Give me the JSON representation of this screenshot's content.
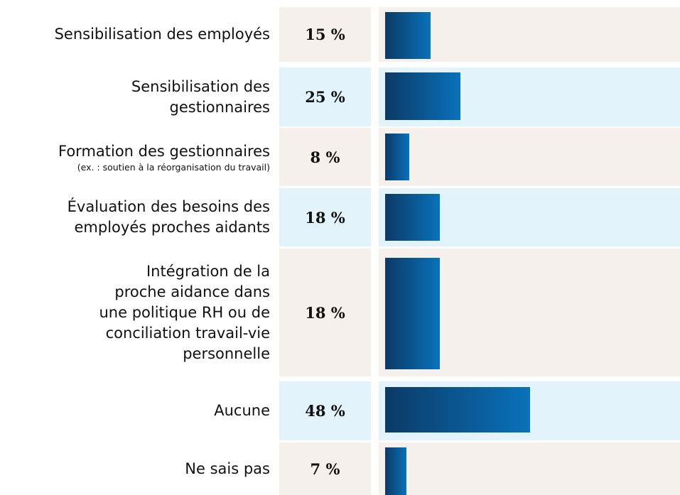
{
  "chart_data": {
    "type": "bar",
    "orientation": "horizontal",
    "categories": [
      "Sensibilisation des employés",
      "Sensibilisation des\ngestionnaires",
      "Formation des gestionnaires",
      "Évaluation des besoins des\nemployés proches aidants",
      "Intégration de la\nproche aidance dans\nune politique RH ou de\nconciliation travail-vie\npersonnelle",
      "Aucune",
      "Ne sais pas"
    ],
    "category_notes": [
      null,
      null,
      "(ex. : soutien à la réorganisation du travail)",
      null,
      null,
      null,
      null
    ],
    "values": [
      15,
      25,
      8,
      18,
      18,
      48,
      7
    ],
    "value_labels": [
      "15 %",
      "25 %",
      "8 %",
      "18 %",
      "18 %",
      "48 %",
      "7 %"
    ],
    "color": [
      "#0b3a66",
      "#0a72bb"
    ],
    "row_colors": [
      "#f5f0ec",
      "#e2f3fc"
    ]
  }
}
